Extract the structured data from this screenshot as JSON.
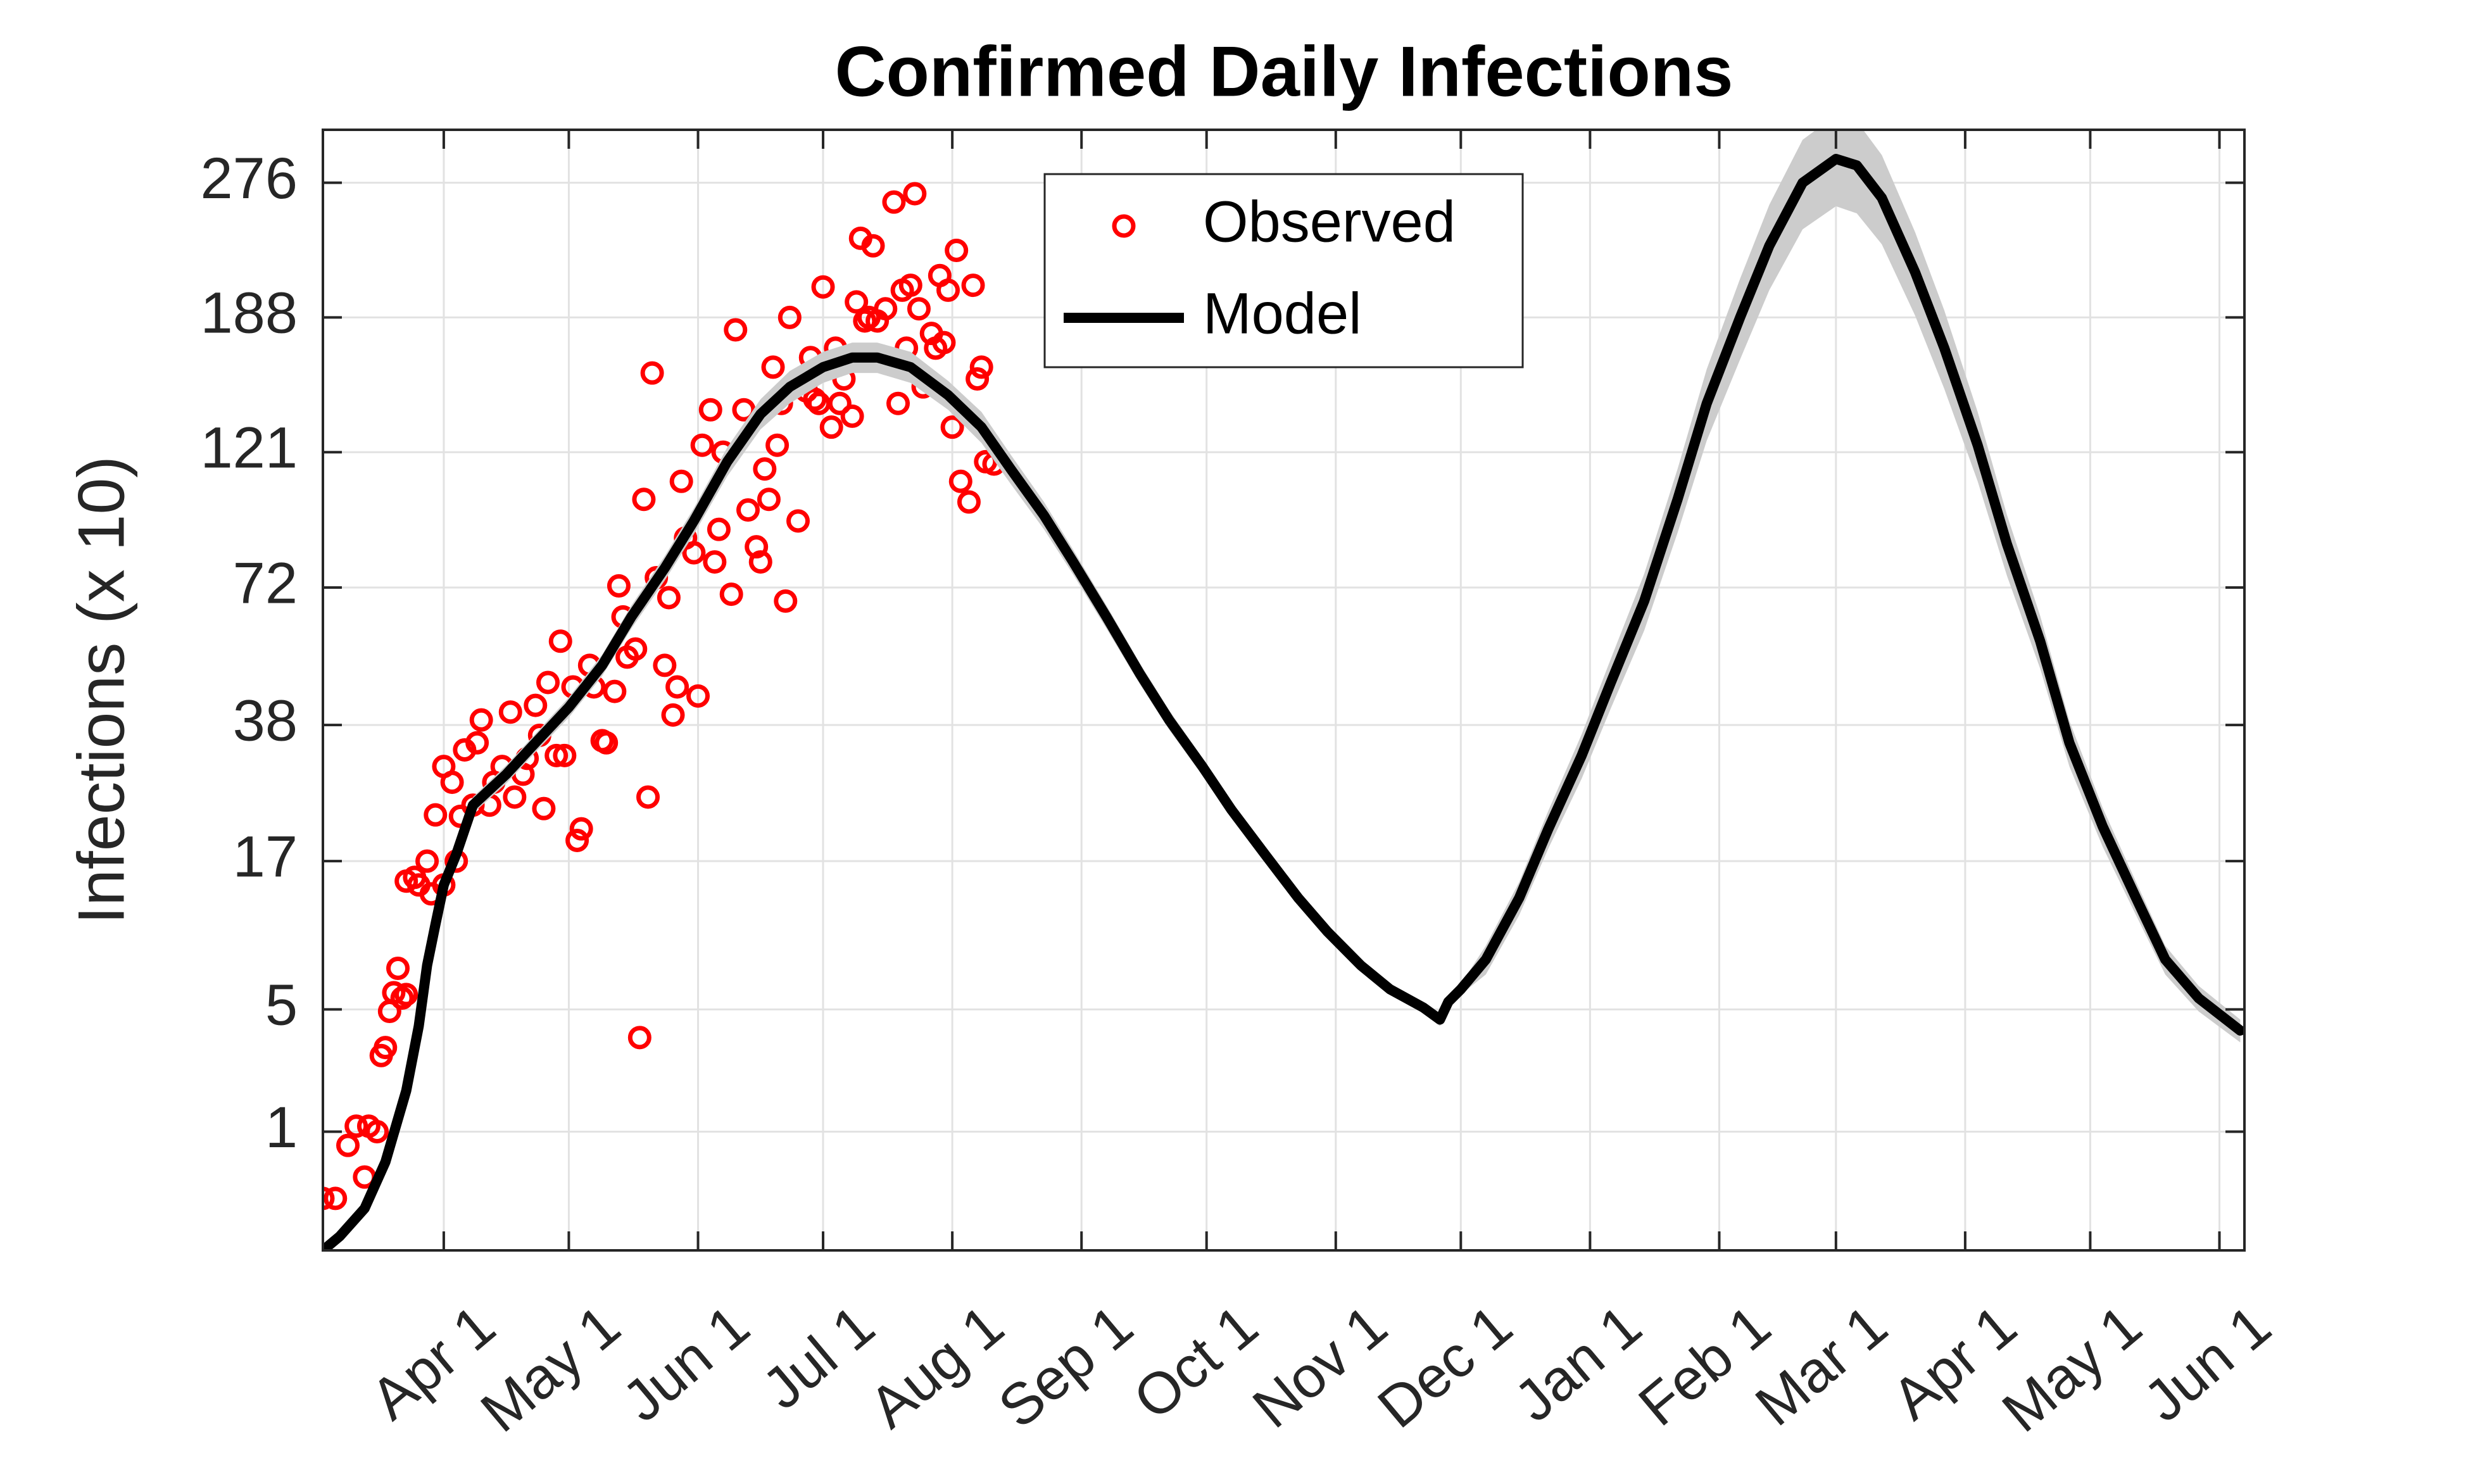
{
  "chart_data": {
    "type": "line",
    "title": "Confirmed Daily Infections",
    "y_label": "Infections (x 10)",
    "yscale": "cuberoot",
    "grid": true,
    "legend": "top",
    "xlim": [
      -29,
      432
    ],
    "xticks": [
      {
        "value": 0,
        "label": "Apr 1"
      },
      {
        "value": 30,
        "label": "May 1"
      },
      {
        "value": 61,
        "label": "Jun 1"
      },
      {
        "value": 91,
        "label": "Jul 1"
      },
      {
        "value": 122,
        "label": "Aug 1"
      },
      {
        "value": 153,
        "label": "Sep 1"
      },
      {
        "value": 183,
        "label": "Oct 1"
      },
      {
        "value": 214,
        "label": "Nov 1"
      },
      {
        "value": 244,
        "label": "Dec 1"
      },
      {
        "value": 275,
        "label": "Jan 1"
      },
      {
        "value": 306,
        "label": "Feb 1"
      },
      {
        "value": 334,
        "label": "Mar 1"
      },
      {
        "value": 365,
        "label": "Apr 1"
      },
      {
        "value": 395,
        "label": "May 1"
      },
      {
        "value": 426,
        "label": "Jun 1"
      }
    ],
    "ylim": [
      0.03,
      317
    ],
    "yticks": [
      1,
      5,
      17,
      38,
      72,
      121,
      188,
      276
    ],
    "series": [
      {
        "name": "Observed",
        "mode": "markers",
        "color": "#ff0000",
        "x": [
          -29,
          -26,
          -23,
          -21,
          -19,
          -18,
          -16,
          -15,
          -14,
          -13,
          -12,
          -11,
          -10,
          -9,
          -9,
          -7,
          -6,
          -4,
          -3,
          -2,
          0,
          0,
          2,
          3,
          4,
          5,
          7,
          8,
          9,
          11,
          12,
          14,
          16,
          17,
          19,
          20,
          22,
          23,
          24,
          25,
          27,
          28,
          29,
          31,
          32,
          33,
          35,
          36,
          38,
          39,
          41,
          42,
          43,
          44,
          46,
          47,
          48,
          49,
          50,
          51,
          53,
          54,
          55,
          56,
          57,
          58,
          60,
          61,
          62,
          64,
          65,
          66,
          67,
          69,
          70,
          72,
          73,
          75,
          76,
          77,
          78,
          79,
          80,
          81,
          82,
          83,
          85,
          87,
          88,
          89,
          90,
          91,
          93,
          94,
          95,
          96,
          98,
          99,
          100,
          101,
          102,
          103,
          104,
          106,
          108,
          109,
          110,
          112,
          113,
          114,
          115,
          117,
          119,
          120,
          121,
          122,
          123,
          124,
          126,
          127,
          128,
          129,
          130,
          132,
          118,
          111
        ],
        "values": [
          0.23,
          0.23,
          0.78,
          1.1,
          0.4,
          1.1,
          1.0,
          3.0,
          3.3,
          4.9,
          5.9,
          7.4,
          5.6,
          5.8,
          14.8,
          15.2,
          14.4,
          17,
          13.5,
          22.9,
          14.4,
          30.4,
          27.8,
          17,
          22.7,
          33.3,
          24.3,
          34.6,
          39,
          24.3,
          27.8,
          30.4,
          40.6,
          25.5,
          29.1,
          31.8,
          42,
          36,
          23.8,
          47,
          32.3,
          57,
          32.3,
          46,
          19.5,
          21,
          51,
          46,
          35,
          34.6,
          45,
          72.5,
          63.5,
          53,
          55,
          3.7,
          102,
          25.5,
          158,
          75,
          51,
          69,
          40,
          46,
          109,
          88,
          83,
          44,
          124,
          140,
          80,
          91,
          121,
          70,
          181,
          140,
          98,
          85,
          80,
          114,
          102,
          161,
          124,
          143,
          68,
          188,
          94,
          149,
          166,
          145,
          143,
          206,
          132,
          171,
          143,
          155,
          137,
          197,
          237,
          186,
          188,
          232,
          186,
          193,
          262,
          143,
          204,
          207,
          268,
          193,
          151,
          179,
          213,
          174,
          204,
          132,
          229,
          109,
          101,
          207,
          155,
          161,
          117,
          116,
          171,
          171
        ]
      },
      {
        "name": "Model",
        "mode": "line",
        "color": "#000000",
        "band_color": "#cccccc",
        "x": [
          -29,
          -25,
          -19,
          -14,
          -9,
          -6,
          -4,
          -2,
          0,
          3,
          7,
          15,
          22,
          30,
          38,
          45,
          53,
          60,
          68,
          76,
          83,
          91,
          98,
          104,
          112,
          121,
          129,
          136,
          144,
          151,
          159,
          167,
          174,
          182,
          189,
          197,
          205,
          212,
          220,
          227,
          235,
          239,
          241,
          244,
          250,
          258,
          265,
          273,
          280,
          288,
          296,
          303,
          311,
          318,
          326,
          334,
          339,
          345,
          353,
          360,
          368,
          375,
          383,
          390,
          398,
          406,
          413,
          421,
          431
        ],
        "values": [
          0.03,
          0.06,
          0.17,
          0.56,
          1.9,
          4.2,
          7.6,
          10.7,
          14.4,
          17.8,
          24.3,
          29.1,
          34.6,
          41.6,
          51,
          63.5,
          78,
          94,
          117,
          138,
          151,
          161,
          166,
          166,
          161,
          147,
          132,
          114,
          96,
          80,
          63.5,
          49,
          39,
          30.4,
          23.6,
          17.8,
          13.1,
          10.1,
          7.6,
          6.1,
          5.1,
          4.5,
          5.4,
          6.1,
          8.0,
          13.1,
          21,
          32.3,
          47,
          68,
          102,
          143,
          188,
          232,
          276,
          294,
          289,
          265,
          215,
          171,
          124,
          86,
          57,
          34.6,
          21.3,
          13.1,
          8.0,
          5.6,
          4.0
        ],
        "band_lower": [
          0.03,
          0.05,
          0.15,
          0.52,
          1.8,
          4.0,
          7.2,
          10.2,
          13.7,
          16.9,
          23.1,
          27.6,
          32.9,
          39.5,
          48.5,
          60.3,
          74.1,
          89.3,
          111,
          131,
          143,
          153,
          158,
          158,
          153,
          140,
          125,
          108,
          91,
          76,
          60.3,
          46.6,
          37.1,
          28.9,
          22.4,
          16.9,
          12.4,
          9.6,
          7.2,
          5.8,
          4.8,
          4.2,
          5.1,
          5.8,
          7.0,
          11.5,
          18.5,
          28.4,
          41.4,
          59.8,
          89.8,
          126,
          165,
          204,
          243,
          259,
          254,
          233,
          189,
          150,
          109,
          75.7,
          50.2,
          30.4,
          18.7,
          11.5,
          7.0,
          4.9,
          3.5
        ],
        "band_upper": [
          0.03,
          0.06,
          0.18,
          0.59,
          2.0,
          4.4,
          8.0,
          11.2,
          15.1,
          18.7,
          25.5,
          30.6,
          36.3,
          43.7,
          53.6,
          66.7,
          81.9,
          98.7,
          123,
          145,
          159,
          169,
          174,
          174,
          169,
          154,
          139,
          120,
          101,
          84,
          66.7,
          51.5,
          41,
          31.9,
          24.8,
          18.7,
          13.8,
          10.6,
          8.0,
          6.4,
          5.4,
          4.7,
          5.7,
          6.4,
          9.0,
          14.7,
          23.5,
          36.2,
          52.6,
          76.2,
          114,
          160,
          211,
          260,
          309,
          329,
          324,
          297,
          241,
          192,
          139,
          96.3,
          63.8,
          38.8,
          23.9,
          14.7,
          9.0,
          6.3,
          4.5
        ]
      }
    ]
  }
}
